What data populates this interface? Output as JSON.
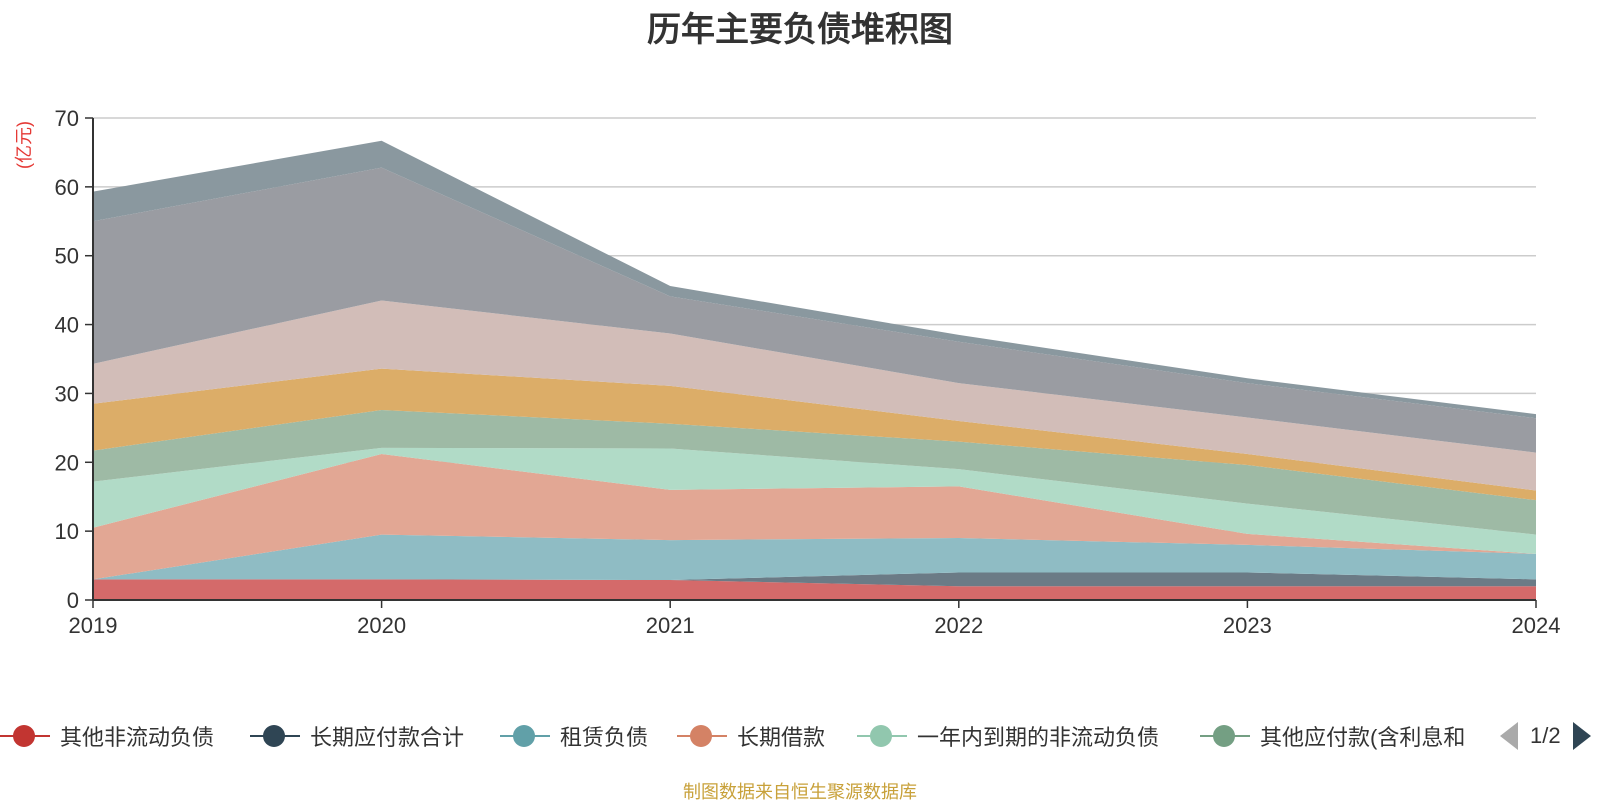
{
  "chart_data": {
    "type": "area",
    "stacked": true,
    "title": "历年主要负债堆积图",
    "ylabel": "(亿元)",
    "xlabel": "",
    "x": [
      "2019",
      "2020",
      "2021",
      "2022",
      "2023",
      "2024"
    ],
    "ylim": [
      0,
      70
    ],
    "yticks": [
      0,
      10,
      20,
      30,
      40,
      50,
      60,
      70
    ],
    "grid": true,
    "legend_position": "bottom",
    "series": [
      {
        "name": "其他非流动负债",
        "color": "#d46a6a",
        "values": [
          3.0,
          3.0,
          2.9,
          2.0,
          2.0,
          2.0
        ]
      },
      {
        "name": "长期应付款合计",
        "color": "#6b7b86",
        "values": [
          0.0,
          0.0,
          0.0,
          2.0,
          2.0,
          1.0
        ]
      },
      {
        "name": "租赁负债",
        "color": "#8fbcc4",
        "values": [
          0.0,
          6.5,
          5.8,
          5.0,
          4.0,
          3.7
        ]
      },
      {
        "name": "长期借款",
        "color": "#e2a794",
        "values": [
          7.5,
          11.7,
          7.3,
          7.5,
          1.6,
          0.0
        ]
      },
      {
        "name": "一年内到期的非流动负债",
        "color": "#b1dbc7",
        "values": [
          6.7,
          0.9,
          6.0,
          2.5,
          4.4,
          2.8
        ]
      },
      {
        "name": "其他应付款(含利息和股利)",
        "color": "#9ebaa5",
        "values": [
          4.5,
          5.5,
          3.6,
          4.0,
          5.6,
          5.0
        ]
      },
      {
        "name": "",
        "color": "#dcad68",
        "values": [
          6.8,
          6.0,
          5.5,
          3.0,
          1.6,
          1.4
        ]
      },
      {
        "name": "",
        "color": "#d2bdb8",
        "values": [
          5.8,
          9.9,
          7.6,
          5.5,
          5.3,
          5.5
        ]
      },
      {
        "name": "",
        "color": "#9a9ca2",
        "values": [
          20.7,
          19.3,
          5.4,
          6.0,
          5.0,
          5.0
        ]
      },
      {
        "name": "",
        "color": "#8a989f",
        "values": [
          4.3,
          3.9,
          1.5,
          1.0,
          0.7,
          0.6
        ]
      }
    ]
  },
  "legend": {
    "items": [
      {
        "label": "其他非流动负债",
        "color": "#c23531"
      },
      {
        "label": "长期应付款合计",
        "color": "#2f4554"
      },
      {
        "label": "租赁负债",
        "color": "#61a0a8"
      },
      {
        "label": "长期借款",
        "color": "#d48265"
      },
      {
        "label": "一年内到期的非流动负债",
        "color": "#91c7ae"
      },
      {
        "label": "其他应付款(含利息和",
        "color": "#749f83"
      }
    ],
    "page_text": "1/2"
  },
  "source": "制图数据来自恒生聚源数据库"
}
